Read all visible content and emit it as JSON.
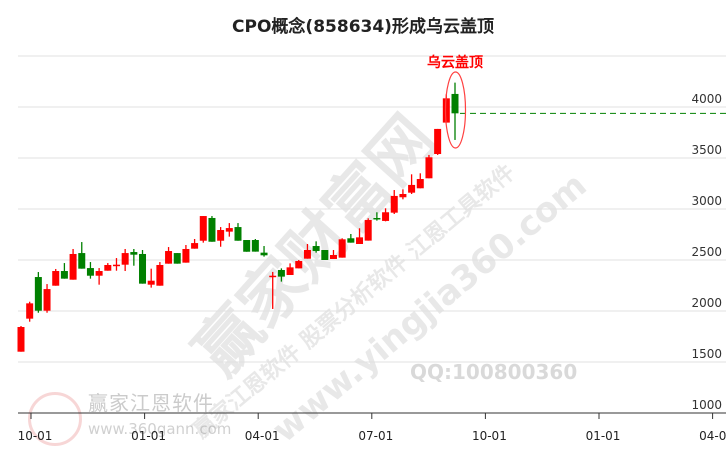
{
  "title": "CPO概念(858634)形成乌云盖顶",
  "watermarks": {
    "big": "赢家财富网",
    "mid": "赢家江恩软件  股票分析软件  江恩工具软件",
    "url_big": "www.yingjia360.com",
    "qq": "QQ:100800360",
    "logo_name": "赢家江恩软件",
    "logo_url": "www.360gann.com",
    "seal": "江赢恩家"
  },
  "chart_data": {
    "type": "candlestick",
    "title": "CPO概念(858634)形成乌云盖顶",
    "up_color": "#ff0000",
    "down_color": "#008000",
    "y_ticks": [
      1000,
      1500,
      2000,
      2500,
      3000,
      3500,
      4000
    ],
    "ylim": [
      1000,
      4500
    ],
    "x_ticks": [
      "10-01",
      "01-01",
      "04-01",
      "07-01",
      "10-01",
      "01-01",
      "04-01"
    ],
    "grid": true,
    "annotation": {
      "text": "乌云盖顶",
      "color": "#ff0000",
      "candle_index": 50
    },
    "last_close_line": {
      "value": 3938,
      "color": "#008000",
      "style": "dashed"
    },
    "ohlc": [
      [
        1601,
        1843,
        1853,
        1601
      ],
      [
        1925,
        2075,
        2091,
        1895
      ],
      [
        2333,
        2003,
        2382,
        1983
      ],
      [
        2003,
        2215,
        2264,
        1983
      ],
      [
        2248,
        2392,
        2412,
        2248
      ],
      [
        2392,
        2317,
        2470,
        2317
      ],
      [
        2307,
        2559,
        2608,
        2307
      ],
      [
        2568,
        2415,
        2676,
        2415
      ],
      [
        2421,
        2346,
        2480,
        2317
      ],
      [
        2346,
        2392,
        2421,
        2258
      ],
      [
        2395,
        2451,
        2470,
        2395
      ],
      [
        2448,
        2454,
        2519,
        2395
      ],
      [
        2454,
        2568,
        2608,
        2392
      ],
      [
        2578,
        2552,
        2608,
        2444
      ],
      [
        2559,
        2268,
        2598,
        2268
      ],
      [
        2258,
        2297,
        2415,
        2229
      ],
      [
        2248,
        2451,
        2480,
        2248
      ],
      [
        2464,
        2588,
        2627,
        2464
      ],
      [
        2568,
        2464,
        2568,
        2464
      ],
      [
        2474,
        2608,
        2647,
        2474
      ],
      [
        2611,
        2666,
        2706,
        2611
      ],
      [
        2689,
        2931,
        2931,
        2670
      ],
      [
        2912,
        2679,
        2931,
        2679
      ],
      [
        2689,
        2794,
        2823,
        2630
      ],
      [
        2778,
        2813,
        2862,
        2729
      ],
      [
        2823,
        2689,
        2862,
        2689
      ],
      [
        2696,
        2581,
        2696,
        2581
      ],
      [
        2696,
        2582,
        2706,
        2582
      ],
      [
        2572,
        2546,
        2637,
        2533
      ],
      [
        2340,
        2346,
        2383,
        2020
      ],
      [
        2402,
        2337,
        2418,
        2288
      ],
      [
        2353,
        2428,
        2467,
        2353
      ],
      [
        2418,
        2490,
        2500,
        2418
      ],
      [
        2513,
        2598,
        2657,
        2513
      ],
      [
        2637,
        2588,
        2683,
        2572
      ],
      [
        2598,
        2500,
        2598,
        2500
      ],
      [
        2510,
        2549,
        2598,
        2510
      ],
      [
        2523,
        2703,
        2713,
        2523
      ],
      [
        2713,
        2670,
        2755,
        2670
      ],
      [
        2657,
        2722,
        2811,
        2657
      ],
      [
        2690,
        2892,
        2909,
        2690
      ],
      [
        2912,
        2907,
        2968,
        2886
      ],
      [
        2883,
        2968,
        3007,
        2879
      ],
      [
        2964,
        3128,
        3186,
        2951
      ],
      [
        3115,
        3147,
        3193,
        3095
      ],
      [
        3160,
        3236,
        3340,
        3147
      ],
      [
        3203,
        3294,
        3350,
        3203
      ],
      [
        3301,
        3507,
        3530,
        3301
      ],
      [
        3539,
        3785,
        3785,
        3530
      ],
      [
        3847,
        4085,
        4124,
        3847
      ],
      [
        4128,
        3938,
        4239,
        3677
      ]
    ]
  }
}
